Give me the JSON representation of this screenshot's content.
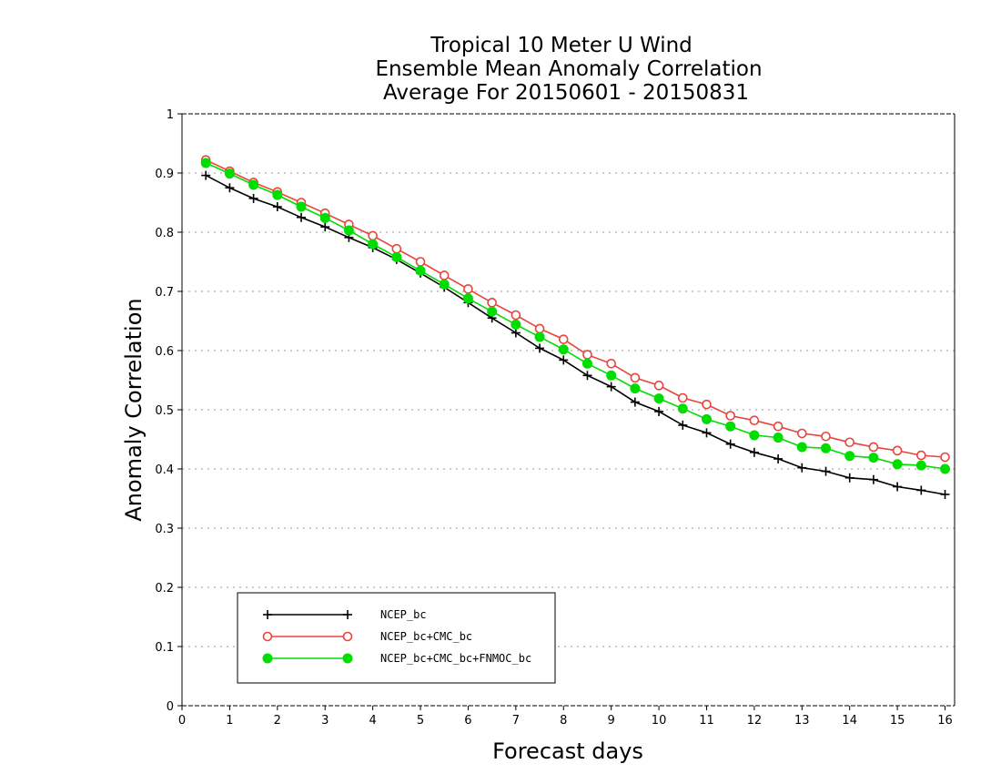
{
  "chart_data": {
    "type": "line",
    "title": [
      "Tropical 10 Meter U Wind",
      "Ensemble Mean Anomaly Correlation",
      "Average For 20150601 - 20150831"
    ],
    "xlabel": "Forecast days",
    "ylabel": "Anomaly Correlation",
    "xlim": [
      0,
      16.2
    ],
    "ylim": [
      0,
      1
    ],
    "xticks": [
      "0",
      "1",
      "2",
      "3",
      "4",
      "5",
      "6",
      "7",
      "8",
      "9",
      "10",
      "11",
      "12",
      "13",
      "14",
      "15",
      "16"
    ],
    "yticks": [
      "0",
      "0.1",
      "0.2",
      "0.3",
      "0.4",
      "0.5",
      "0.6",
      "0.7",
      "0.8",
      "0.9",
      "1"
    ],
    "grid": "horizontal dotted",
    "legend_position": "lower-left",
    "x": [
      0.5,
      1,
      1.5,
      2,
      2.5,
      3,
      3.5,
      4,
      4.5,
      5,
      5.5,
      6,
      6.5,
      7,
      7.5,
      8,
      8.5,
      9,
      9.5,
      10,
      10.5,
      11,
      11.5,
      12,
      12.5,
      13,
      13.5,
      14,
      14.5,
      15,
      15.5,
      16
    ],
    "series": [
      {
        "name": "NCEP_bc",
        "color": "#000000",
        "marker": "plus",
        "values": [
          0.896,
          0.875,
          0.857,
          0.843,
          0.825,
          0.809,
          0.791,
          0.774,
          0.754,
          0.731,
          0.707,
          0.681,
          0.655,
          0.63,
          0.604,
          0.584,
          0.558,
          0.539,
          0.513,
          0.497,
          0.474,
          0.461,
          0.442,
          0.428,
          0.417,
          0.402,
          0.396,
          0.385,
          0.382,
          0.37,
          0.364,
          0.357
        ]
      },
      {
        "name": "NCEP_bc+CMC_bc",
        "color": "#e8443c",
        "marker": "open-circle",
        "values": [
          0.922,
          0.903,
          0.884,
          0.868,
          0.85,
          0.832,
          0.813,
          0.794,
          0.772,
          0.75,
          0.727,
          0.704,
          0.681,
          0.66,
          0.637,
          0.619,
          0.593,
          0.578,
          0.554,
          0.541,
          0.52,
          0.509,
          0.49,
          0.482,
          0.472,
          0.46,
          0.455,
          0.445,
          0.437,
          0.431,
          0.423,
          0.42
        ]
      },
      {
        "name": "NCEP_bc+CMC_bc+FNMOC_bc",
        "color": "#00dd00",
        "marker": "filled-circle",
        "values": [
          0.917,
          0.899,
          0.88,
          0.863,
          0.843,
          0.824,
          0.803,
          0.78,
          0.758,
          0.735,
          0.712,
          0.688,
          0.666,
          0.644,
          0.623,
          0.602,
          0.578,
          0.558,
          0.536,
          0.519,
          0.502,
          0.484,
          0.472,
          0.457,
          0.453,
          0.437,
          0.435,
          0.422,
          0.419,
          0.408,
          0.406,
          0.4
        ]
      }
    ]
  }
}
